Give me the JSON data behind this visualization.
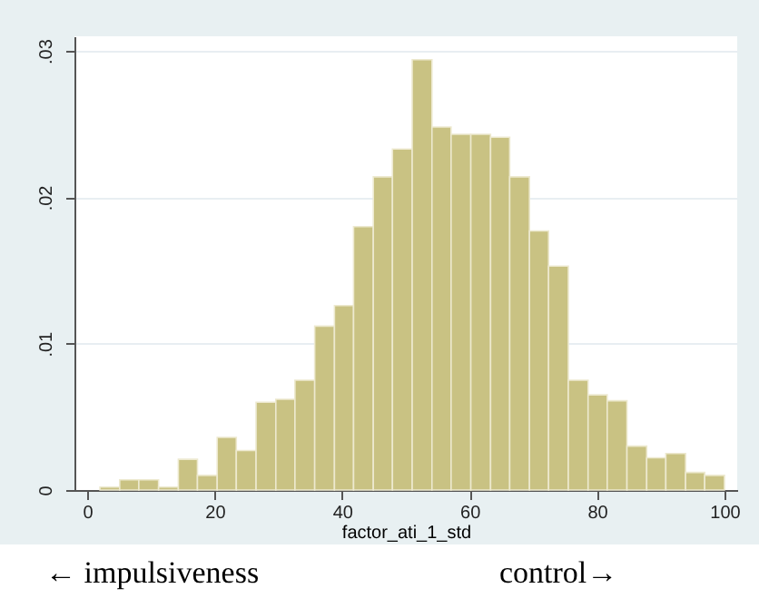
{
  "chart_data": {
    "type": "histogram",
    "xlabel": "factor_ati_1_std",
    "bins": [
      2,
      5.1,
      8.1,
      11.2,
      14.3,
      17.3,
      20.4,
      23.4,
      26.5,
      29.6,
      32.6,
      35.7,
      38.8,
      41.8,
      44.9,
      47.9,
      51,
      54.1,
      57.1,
      60.2,
      63.3,
      66.3,
      69.4,
      72.4,
      75.5,
      78.6,
      81.6,
      84.7,
      87.8,
      90.8,
      93.9,
      96.9,
      100
    ],
    "values": [
      0.0002,
      0.0007,
      0.0007,
      0.0002,
      0.0021,
      0.001,
      0.0036,
      0.0027,
      0.006,
      0.0062,
      0.0075,
      0.0112,
      0.0126,
      0.018,
      0.0214,
      0.0233,
      0.0294,
      0.0248,
      0.0243,
      0.0243,
      0.0241,
      0.0214,
      0.0177,
      0.0153,
      0.0075,
      0.0065,
      0.0061,
      0.003,
      0.0022,
      0.0025,
      0.0012,
      0.001
    ],
    "color": "#c9c283",
    "xlim": [
      -2,
      102
    ],
    "xticks": [
      0,
      20,
      40,
      60,
      80,
      100
    ],
    "ylim": [
      0,
      0.031
    ],
    "yticks": [
      0,
      {
        "value": 0.01,
        "label": ".01"
      },
      {
        "value": 0.02,
        "label": ".02"
      },
      {
        "value": 0.03,
        "label": ".03"
      }
    ],
    "grid": "y",
    "annotations": [
      "← impulsiveness",
      "control→"
    ]
  }
}
